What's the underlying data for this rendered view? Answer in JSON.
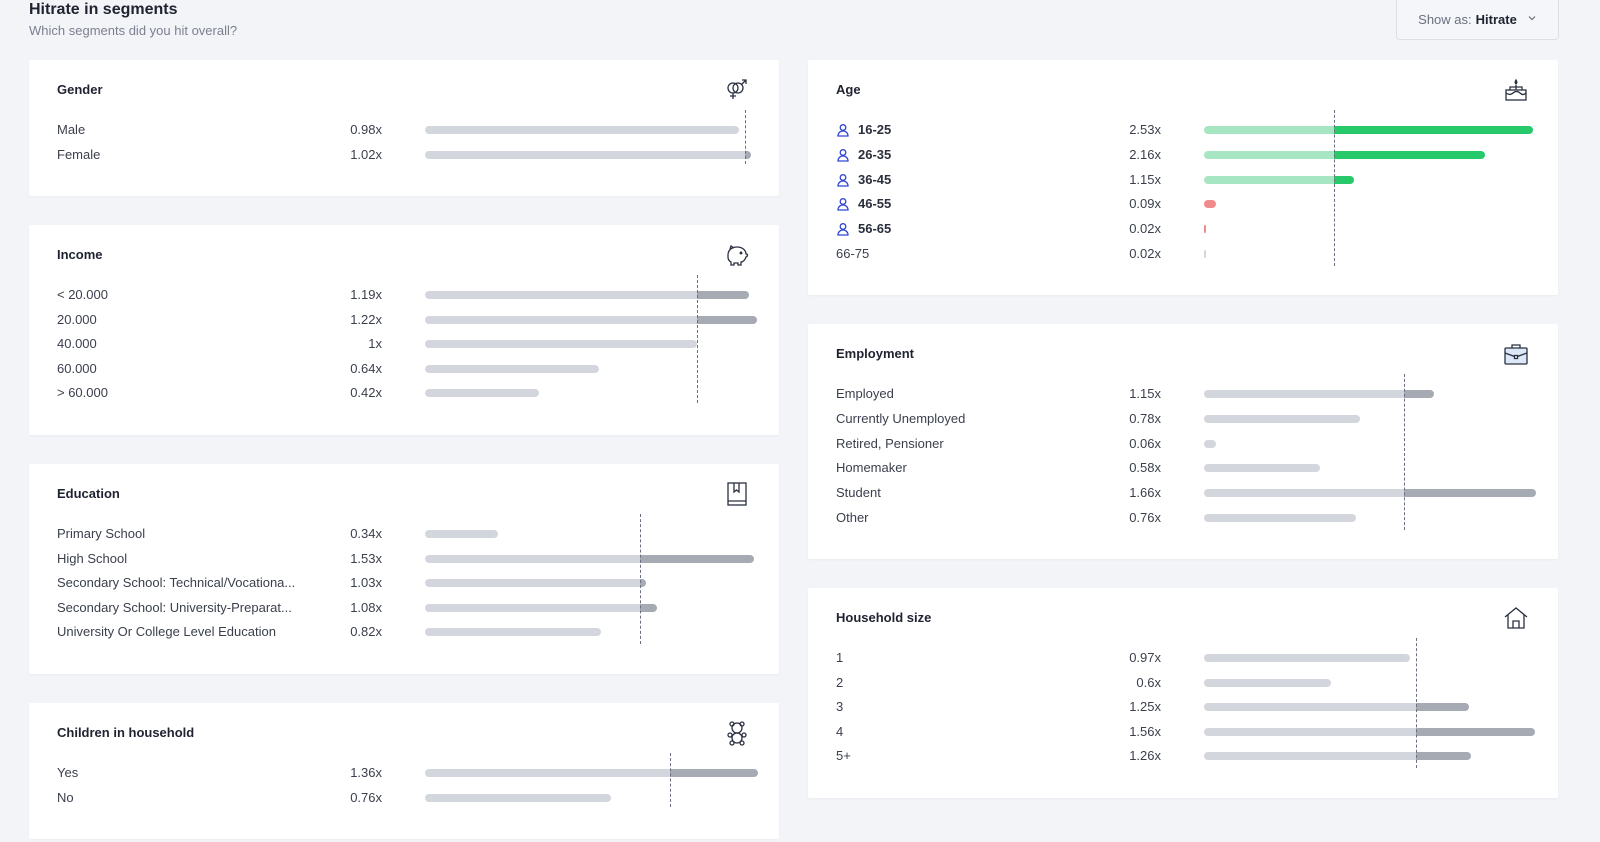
{
  "header": {
    "title": "Hitrate in segments",
    "subtitle": "Which segments did you hit overall?"
  },
  "show_as": {
    "prefix": "Show as:",
    "value": "Hitrate"
  },
  "colors": {
    "bar_light": "#d3d6dc",
    "bar_dark": "#a6aab3",
    "green_light": "#a7e6c2",
    "green_dark": "#27c96b",
    "red": "#f18b8b",
    "person_icon": "#2f46d6"
  },
  "panels": [
    {
      "id": "gender",
      "title": "Gender",
      "icon": "gender-icon",
      "avg": 1.0,
      "max": 1.0,
      "rows": [
        {
          "label": "Male",
          "value": 0.98,
          "display": "0.98x"
        },
        {
          "label": "Female",
          "value": 1.02,
          "display": "1.02x"
        }
      ]
    },
    {
      "id": "income",
      "title": "Income",
      "icon": "piggy-bank-icon",
      "avg": 1.0,
      "rows": [
        {
          "label": "< 20.000",
          "value": 1.19,
          "display": "1.19x"
        },
        {
          "label": "20.000",
          "value": 1.22,
          "display": "1.22x"
        },
        {
          "label": "40.000",
          "value": 1.0,
          "display": "1x"
        },
        {
          "label": "60.000",
          "value": 0.64,
          "display": "0.64x"
        },
        {
          "label": "> 60.000",
          "value": 0.42,
          "display": "0.42x"
        }
      ]
    },
    {
      "id": "education",
      "title": "Education",
      "icon": "book-icon",
      "avg": 1.0,
      "rows": [
        {
          "label": "Primary School",
          "value": 0.34,
          "display": "0.34x"
        },
        {
          "label": "High School",
          "value": 1.53,
          "display": "1.53x"
        },
        {
          "label": "Secondary School: Technical/Vocationa...",
          "value": 1.03,
          "display": "1.03x"
        },
        {
          "label": "Secondary School: University-Preparat...",
          "value": 1.08,
          "display": "1.08x"
        },
        {
          "label": "University Or College Level Education",
          "value": 0.82,
          "display": "0.82x"
        }
      ]
    },
    {
      "id": "children",
      "title": "Children in household",
      "icon": "teddy-bear-icon",
      "avg": 1.0,
      "rows": [
        {
          "label": "Yes",
          "value": 1.36,
          "display": "1.36x"
        },
        {
          "label": "No",
          "value": 0.76,
          "display": "0.76x"
        }
      ]
    },
    {
      "id": "age",
      "title": "Age",
      "icon": "birthday-cake-icon",
      "avg": 1.0,
      "highlight": true,
      "rows": [
        {
          "label": "16-25",
          "value": 2.53,
          "display": "2.53x",
          "targeted": true
        },
        {
          "label": "26-35",
          "value": 2.16,
          "display": "2.16x",
          "targeted": true
        },
        {
          "label": "36-45",
          "value": 1.15,
          "display": "1.15x",
          "targeted": true
        },
        {
          "label": "46-55",
          "value": 0.09,
          "display": "0.09x",
          "targeted": true
        },
        {
          "label": "56-65",
          "value": 0.02,
          "display": "0.02x",
          "targeted": true
        },
        {
          "label": "66-75",
          "value": 0.02,
          "display": "0.02x",
          "targeted": false
        }
      ]
    },
    {
      "id": "employment",
      "title": "Employment",
      "icon": "briefcase-icon",
      "avg": 1.0,
      "rows": [
        {
          "label": "Employed",
          "value": 1.15,
          "display": "1.15x"
        },
        {
          "label": "Currently Unemployed",
          "value": 0.78,
          "display": "0.78x"
        },
        {
          "label": "Retired, Pensioner",
          "value": 0.06,
          "display": "0.06x"
        },
        {
          "label": "Homemaker",
          "value": 0.58,
          "display": "0.58x"
        },
        {
          "label": "Student",
          "value": 1.66,
          "display": "1.66x"
        },
        {
          "label": "Other",
          "value": 0.76,
          "display": "0.76x"
        }
      ]
    },
    {
      "id": "household",
      "title": "Household size",
      "icon": "house-icon",
      "avg": 1.0,
      "rows": [
        {
          "label": "1",
          "value": 0.97,
          "display": "0.97x"
        },
        {
          "label": "2",
          "value": 0.6,
          "display": "0.6x"
        },
        {
          "label": "3",
          "value": 1.25,
          "display": "1.25x"
        },
        {
          "label": "4",
          "value": 1.56,
          "display": "1.56x"
        },
        {
          "label": "5+",
          "value": 1.26,
          "display": "1.26x"
        }
      ]
    }
  ]
}
